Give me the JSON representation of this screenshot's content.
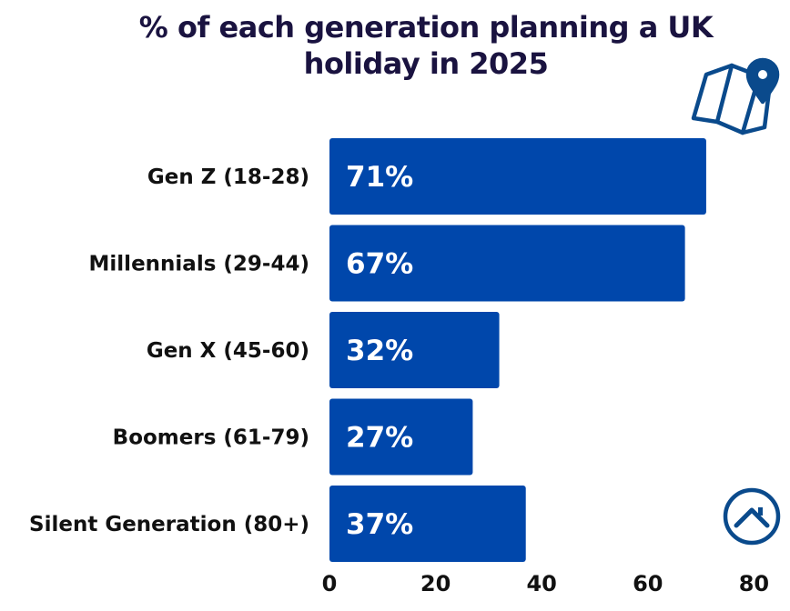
{
  "chart_data": {
    "type": "bar",
    "orientation": "horizontal",
    "title": "% of each generation planning a UK holiday in 2025",
    "categories": [
      "Gen Z (18-28)",
      "Millennials (29-44)",
      "Gen X (45-60)",
      "Boomers (61-79)",
      "Silent Generation (80+)"
    ],
    "values": [
      71,
      67,
      32,
      27,
      37
    ],
    "data_labels": [
      "71%",
      "67%",
      "32%",
      "27%",
      "37%"
    ],
    "xlim": [
      0,
      80
    ],
    "xticks": [
      "0",
      "20",
      "40",
      "60",
      "80"
    ],
    "grid": false,
    "bar_color": "#0047AB"
  },
  "icons": {
    "map": "map-pin-icon",
    "logo": "house-logo-icon"
  },
  "colors": {
    "bar": "#0047AB",
    "title": "#1a1340",
    "icon_stroke": "#0a4a8c"
  }
}
